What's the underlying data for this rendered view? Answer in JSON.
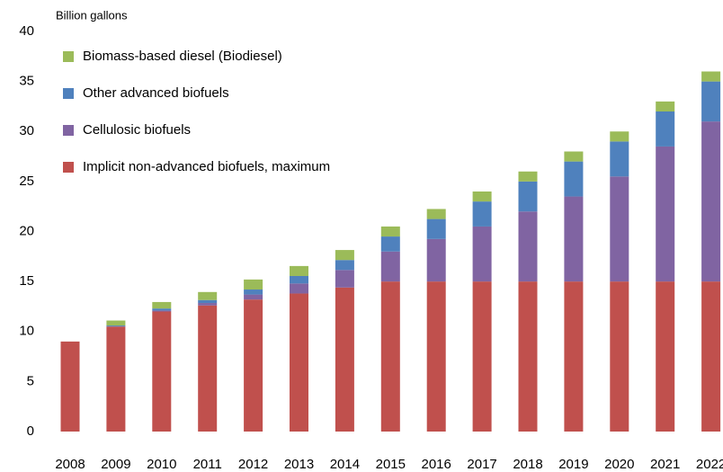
{
  "chart_data": {
    "type": "stacked_bar",
    "y_label": "Billion  gallons",
    "categories": [
      "2008",
      "2009",
      "2010",
      "2011",
      "2012",
      "2013",
      "2014",
      "2015",
      "2016",
      "2017",
      "2018",
      "2019",
      "2020",
      "2021",
      "2022"
    ],
    "series": [
      {
        "name": "Implicit non-advanced biofuels, maximum",
        "color": "#c0504d",
        "values": [
          9.0,
          10.5,
          12.0,
          12.6,
          13.2,
          13.8,
          14.4,
          15,
          15,
          15,
          15,
          15,
          15,
          15,
          15
        ]
      },
      {
        "name": "Cellulosic biofuels",
        "color": "#8064a2",
        "values": [
          0,
          0,
          0.1,
          0.25,
          0.5,
          1.0,
          1.75,
          3.0,
          4.25,
          5.5,
          7.0,
          8.5,
          10.5,
          13.5,
          16.0
        ]
      },
      {
        "name": "Other advanced biofuels",
        "color": "#4f81bd",
        "values": [
          0,
          0.1,
          0.2,
          0.3,
          0.5,
          0.75,
          1.0,
          1.5,
          2.0,
          2.5,
          3.0,
          3.5,
          3.5,
          3.5,
          4.0
        ]
      },
      {
        "name": "Biomass-based diesel (Biodiesel)",
        "color": "#9bbb59",
        "values": [
          0,
          0.5,
          0.65,
          0.8,
          1.0,
          1.0,
          1.0,
          1.0,
          1.0,
          1.0,
          1.0,
          1.0,
          1.0,
          1.0,
          1.0
        ]
      }
    ],
    "ylim": [
      0,
      40
    ],
    "yticks": [
      0,
      5,
      10,
      15,
      20,
      25,
      30,
      35,
      40
    ],
    "grid": false,
    "legend": "top-left"
  }
}
